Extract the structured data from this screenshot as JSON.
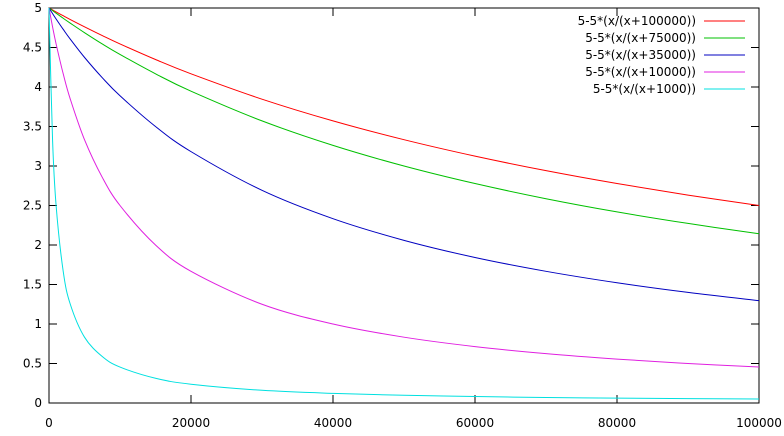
{
  "chart_data": {
    "type": "line",
    "title": "",
    "xlabel": "",
    "ylabel": "",
    "xlim": [
      0,
      100000
    ],
    "ylim": [
      0,
      5
    ],
    "xticks": [
      0,
      20000,
      40000,
      60000,
      80000,
      100000
    ],
    "xtick_labels": [
      "0",
      "20000",
      "40000",
      "60000",
      "80000",
      "100000"
    ],
    "yticks": [
      0,
      0.5,
      1,
      1.5,
      2,
      2.5,
      3,
      3.5,
      4,
      4.5,
      5
    ],
    "ytick_labels": [
      "0",
      "0.5",
      "1",
      "1.5",
      "2",
      "2.5",
      "3",
      "3.5",
      "4",
      "4.5",
      "5"
    ],
    "grid": false,
    "legend_position": "top-right",
    "x": [
      0,
      500,
      1000,
      2000,
      3000,
      5000,
      7500,
      10000,
      15000,
      20000,
      30000,
      40000,
      50000,
      60000,
      70000,
      80000,
      90000,
      100000
    ],
    "series": [
      {
        "name": "5-5*(x/(x+100000))",
        "color": "#ff0000",
        "values": [
          5,
          4.975,
          4.95,
          4.902,
          4.854,
          4.762,
          4.651,
          4.545,
          4.348,
          4.167,
          3.846,
          3.571,
          3.333,
          3.125,
          2.941,
          2.778,
          2.632,
          2.5
        ]
      },
      {
        "name": "5-5*(x/(x+75000))",
        "color": "#00c000",
        "values": [
          5,
          4.967,
          4.934,
          4.87,
          4.808,
          4.688,
          4.545,
          4.412,
          4.167,
          3.947,
          3.571,
          3.261,
          3.0,
          2.778,
          2.586,
          2.419,
          2.273,
          2.143
        ]
      },
      {
        "name": "5-5*(x/(x+35000))",
        "color": "#0000c0",
        "values": [
          5,
          4.93,
          4.861,
          4.73,
          4.605,
          4.375,
          4.118,
          3.889,
          3.5,
          3.182,
          2.692,
          2.333,
          2.059,
          1.842,
          1.667,
          1.522,
          1.4,
          1.296
        ]
      },
      {
        "name": "5-5*(x/(x+10000))",
        "color": "#e020e0",
        "values": [
          5,
          4.762,
          4.545,
          4.167,
          3.846,
          3.333,
          2.857,
          2.5,
          2.0,
          1.667,
          1.25,
          1.0,
          0.833,
          0.714,
          0.625,
          0.556,
          0.5,
          0.455
        ]
      },
      {
        "name": "5-5*(x/(x+1000))",
        "color": "#00e0e0",
        "values": [
          5,
          3.333,
          2.5,
          1.667,
          1.25,
          0.833,
          0.588,
          0.455,
          0.313,
          0.238,
          0.161,
          0.122,
          0.098,
          0.082,
          0.07,
          0.062,
          0.055,
          0.05
        ]
      }
    ]
  }
}
